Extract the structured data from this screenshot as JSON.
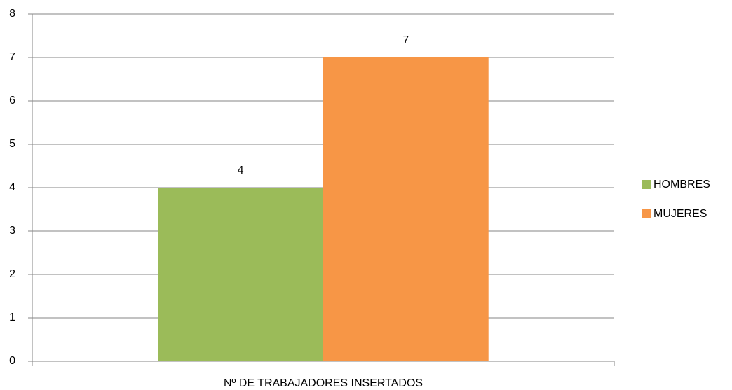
{
  "chart_data": {
    "type": "bar",
    "categories": [
      "Nº DE TRABAJADORES INSERTADOS"
    ],
    "series": [
      {
        "name": "HOMBRES",
        "color": "#9bbb59",
        "values": [
          4
        ]
      },
      {
        "name": "MUJERES",
        "color": "#f79646",
        "values": [
          7
        ]
      }
    ],
    "ylim": [
      0,
      8
    ],
    "yticks": [
      0,
      1,
      2,
      3,
      4,
      5,
      6,
      7,
      8
    ],
    "grid": true,
    "legend": "right"
  }
}
